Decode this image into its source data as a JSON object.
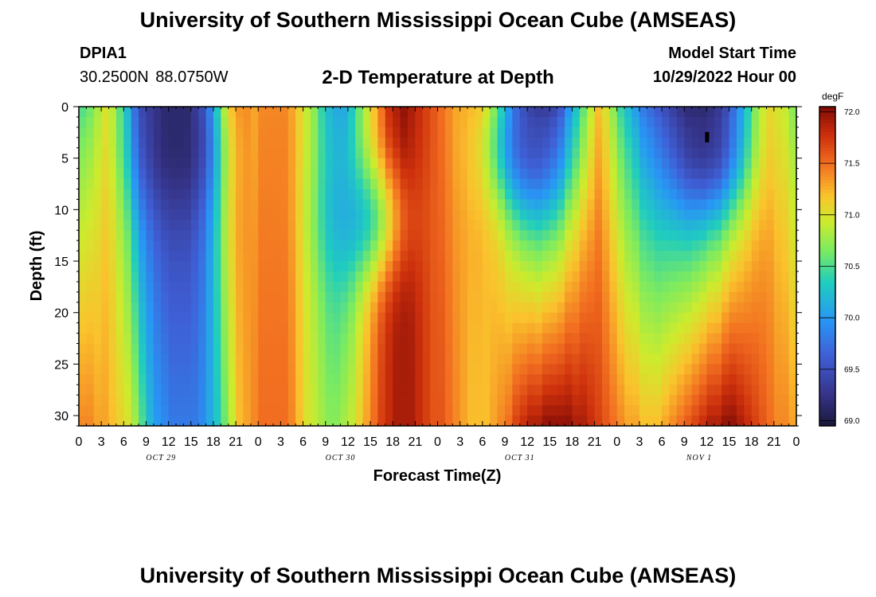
{
  "header": {
    "title": "University of Southern Mississippi Ocean Cube (AMSEAS)",
    "station": "DPIA1",
    "coordinates": "30.2500N  88.0750W",
    "subtitle": "2-D Temperature at Depth",
    "model_start_label": "Model Start Time",
    "model_start_value": "10/29/2022 Hour 00"
  },
  "footer": {
    "title": "University of Southern Mississippi Ocean Cube (AMSEAS)"
  },
  "chart_data": {
    "type": "heatmap",
    "title": "2-D Temperature at Depth",
    "xlabel": "Forecast Time(Z)",
    "ylabel": "Depth (ft)",
    "x_range_hours": [
      0,
      96
    ],
    "y_range_ft": [
      0,
      31
    ],
    "x_tick_labels": [
      "0",
      "3",
      "6",
      "9",
      "12",
      "15",
      "18",
      "21",
      "0",
      "3",
      "6",
      "9",
      "12",
      "15",
      "18",
      "21",
      "0",
      "3",
      "6",
      "9",
      "12",
      "15",
      "18",
      "21",
      "0",
      "3",
      "6",
      "9",
      "12",
      "15",
      "18",
      "21",
      "0"
    ],
    "y_ticks": [
      0,
      5,
      10,
      15,
      20,
      25,
      30
    ],
    "date_labels": [
      {
        "text": "OCT 29",
        "hour": 11
      },
      {
        "text": "OCT 30",
        "hour": 35
      },
      {
        "text": "OCT 31",
        "hour": 59
      },
      {
        "text": "NOV 1",
        "hour": 83
      }
    ],
    "colorbar": {
      "unit": "degF",
      "min": 68.95,
      "max": 72.05,
      "tick_labels": [
        "72.0",
        "71.5",
        "71.0",
        "70.5",
        "70.0",
        "69.5",
        "69.0"
      ],
      "tick_values": [
        72.0,
        71.5,
        71.0,
        70.5,
        70.0,
        69.5,
        69.0
      ]
    },
    "grid_resolution": {
      "hour_step": 1,
      "depth_step_ft": 1
    },
    "surface_temperature_degF_by_hour": [
      70.5,
      70.6,
      70.8,
      71.0,
      70.9,
      70.6,
      70.3,
      69.8,
      69.5,
      69.4,
      69.3,
      69.2,
      69.2,
      69.2,
      69.2,
      69.4,
      69.6,
      70.0,
      70.5,
      71.0,
      71.3,
      71.4,
      71.4,
      71.3,
      71.4,
      71.4,
      71.4,
      71.4,
      71.3,
      71.1,
      70.9,
      70.7,
      70.4,
      70.2,
      70.1,
      70.1,
      70.3,
      70.6,
      70.9,
      71.2,
      71.5,
      71.8,
      71.9,
      72.0,
      71.9,
      71.8,
      71.7,
      71.6,
      71.5,
      71.4,
      71.3,
      71.3,
      71.3,
      71.3,
      71.2,
      71.0,
      70.7,
      70.3,
      69.9,
      69.6,
      69.4,
      69.3,
      69.3,
      69.4,
      69.6,
      70.0,
      70.3,
      70.6,
      70.9,
      71.2,
      71.0,
      70.7,
      70.4,
      70.2,
      70.0,
      69.8,
      69.7,
      69.6,
      69.5,
      69.4,
      69.3,
      69.2,
      69.2,
      69.2,
      69.3,
      69.4,
      69.6,
      69.9,
      70.2,
      70.5,
      70.8,
      71.0,
      71.1,
      71.0,
      70.9,
      70.7,
      70.6
    ],
    "bottom_temperature_degF_by_hour": [
      71.4,
      71.4,
      71.3,
      71.3,
      71.2,
      71.1,
      71.0,
      70.8,
      70.5,
      70.2,
      70.0,
      69.9,
      69.8,
      69.8,
      69.8,
      69.8,
      69.9,
      70.1,
      70.3,
      70.6,
      70.9,
      71.2,
      71.3,
      71.4,
      71.5,
      71.5,
      71.5,
      71.5,
      71.4,
      71.2,
      71.0,
      70.9,
      70.8,
      70.7,
      70.7,
      70.8,
      70.9,
      71.1,
      71.3,
      71.5,
      71.7,
      71.8,
      71.9,
      71.9,
      71.9,
      71.8,
      71.7,
      71.6,
      71.6,
      71.5,
      71.4,
      71.3,
      71.2,
      71.2,
      71.2,
      71.3,
      71.4,
      71.5,
      71.7,
      71.8,
      71.9,
      71.9,
      72.0,
      72.0,
      72.0,
      72.0,
      71.9,
      71.9,
      71.8,
      71.7,
      71.6,
      71.5,
      71.4,
      71.3,
      71.3,
      71.2,
      71.2,
      71.2,
      71.3,
      71.4,
      71.5,
      71.6,
      71.7,
      71.8,
      71.9,
      71.9,
      72.0,
      72.0,
      71.9,
      71.8,
      71.7,
      71.6,
      71.5,
      71.4,
      71.4,
      71.3,
      71.3
    ],
    "cold_pockets": [
      {
        "center_hour": 13,
        "center_depth_ft": 4,
        "min_degF": 69.05
      },
      {
        "center_hour": 38,
        "center_depth_ft": 11,
        "min_degF": 69.85
      },
      {
        "center_hour": 60,
        "center_depth_ft": 4,
        "min_degF": 69.3
      },
      {
        "center_hour": 84,
        "center_depth_ft": 4,
        "min_degF": 69.0
      }
    ],
    "marker": {
      "hour": 84,
      "depth_ft": 3
    }
  }
}
